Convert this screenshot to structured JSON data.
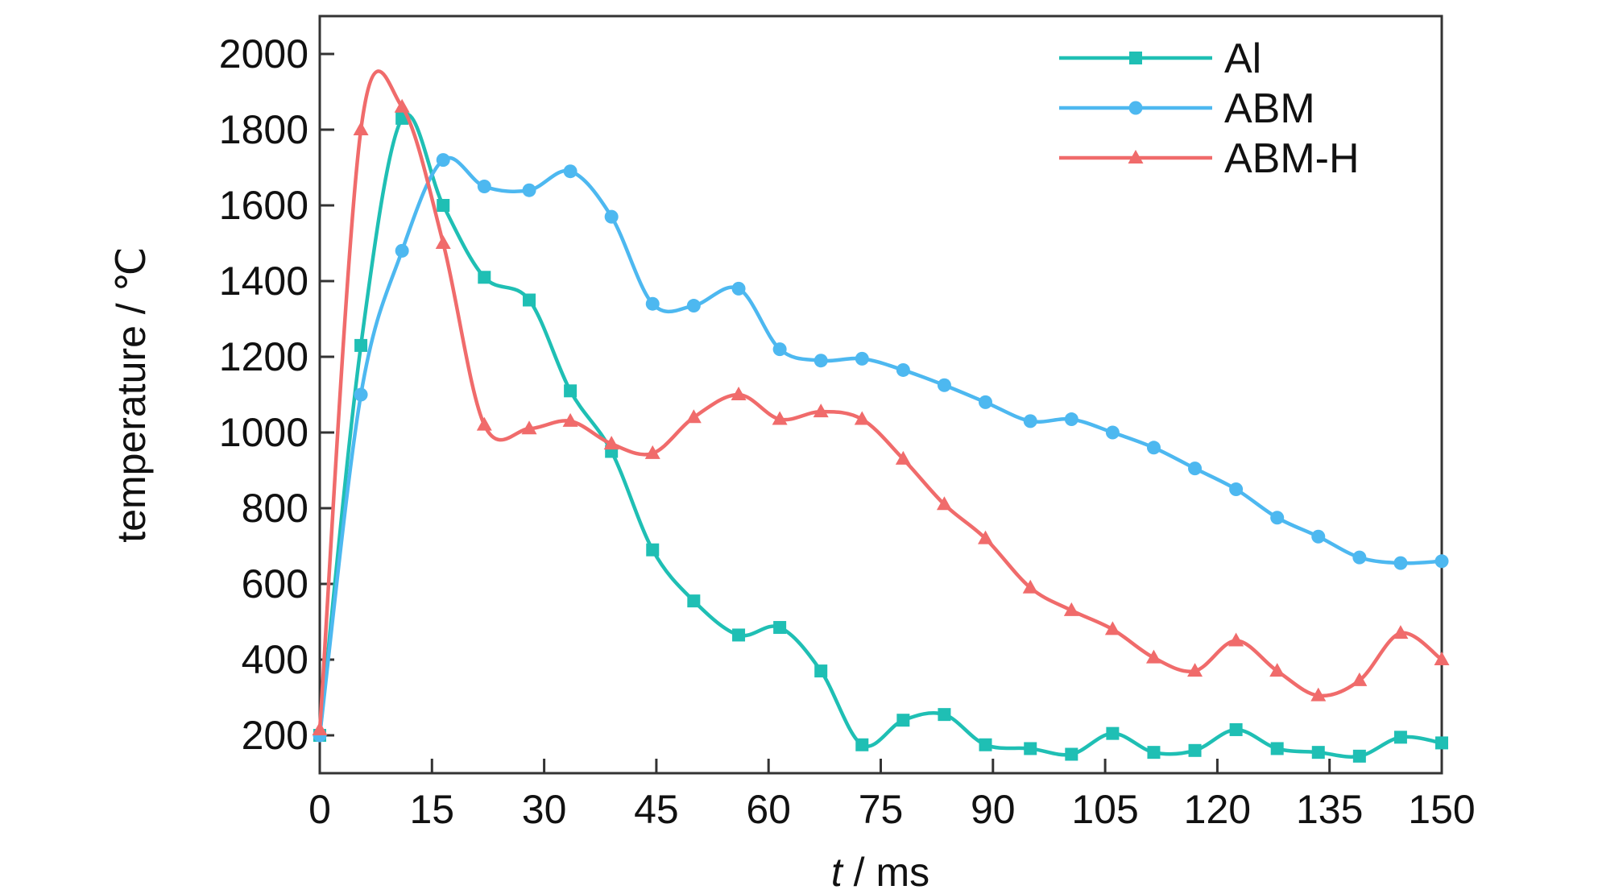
{
  "chart_data": {
    "type": "line",
    "xlabel_italic": "t",
    "xlabel_rest": " / ms",
    "ylabel": "temperature / ℃",
    "xlim": [
      0,
      150
    ],
    "ylim": [
      100,
      2100
    ],
    "xticks": [
      "0",
      "15",
      "30",
      "45",
      "60",
      "75",
      "90",
      "105",
      "120",
      "135",
      "150"
    ],
    "yticks": [
      "200",
      "400",
      "600",
      "800",
      "1000",
      "1200",
      "1400",
      "1600",
      "1800",
      "2000"
    ],
    "legend_position": "top-right",
    "series": [
      {
        "name": "Al",
        "color": "#1fbfb4",
        "marker": "square",
        "x": [
          0,
          5.5,
          11,
          16.5,
          22,
          28,
          33.5,
          39,
          44.5,
          50,
          56,
          61.5,
          67,
          72.5,
          78,
          83.5,
          89,
          95,
          100.5,
          106,
          111.5,
          117,
          122.5,
          128,
          133.5,
          139,
          144.5,
          150
        ],
        "y": [
          200,
          1230,
          1830,
          1600,
          1410,
          1350,
          1110,
          950,
          690,
          555,
          465,
          485,
          370,
          175,
          240,
          255,
          175,
          165,
          150,
          205,
          155,
          160,
          215,
          165,
          155,
          145,
          195,
          180
        ]
      },
      {
        "name": "ABM",
        "color": "#4db8f0",
        "marker": "circle",
        "x": [
          0,
          5.5,
          11,
          16.5,
          22,
          28,
          33.5,
          39,
          44.5,
          50,
          56,
          61.5,
          67,
          72.5,
          78,
          83.5,
          89,
          95,
          100.5,
          106,
          111.5,
          117,
          122.5,
          128,
          133.5,
          139,
          144.5,
          150
        ],
        "y": [
          200,
          1100,
          1480,
          1720,
          1650,
          1640,
          1690,
          1570,
          1340,
          1335,
          1380,
          1220,
          1190,
          1195,
          1165,
          1125,
          1080,
          1030,
          1035,
          1000,
          960,
          905,
          850,
          775,
          725,
          670,
          655,
          660
        ]
      },
      {
        "name": "ABM-H",
        "color": "#f06b6b",
        "marker": "triangle",
        "x": [
          0,
          5.5,
          11,
          16.5,
          22,
          28,
          33.5,
          39,
          44.5,
          50,
          56,
          61.5,
          67,
          72.5,
          78,
          83.5,
          89,
          95,
          100.5,
          106,
          111.5,
          117,
          122.5,
          128,
          133.5,
          139,
          144.5,
          150
        ],
        "y": [
          215,
          1800,
          1860,
          1500,
          1020,
          1010,
          1030,
          970,
          945,
          1040,
          1100,
          1035,
          1055,
          1035,
          930,
          810,
          720,
          590,
          530,
          480,
          405,
          370,
          450,
          370,
          305,
          345,
          470,
          400
        ]
      }
    ]
  }
}
